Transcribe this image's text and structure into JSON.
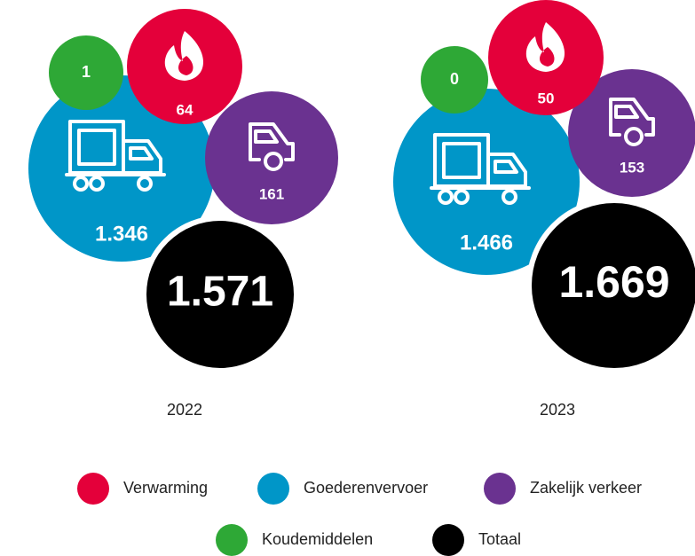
{
  "chart_data": {
    "type": "bubble",
    "categories": [
      "2022",
      "2023"
    ],
    "series": [
      {
        "name": "Verwarming",
        "color": "#e4003a",
        "values": [
          64,
          50
        ]
      },
      {
        "name": "Goederenvervoer",
        "color": "#0096c8",
        "values": [
          1346,
          1466
        ],
        "value_labels": [
          "1.346",
          "1.466"
        ]
      },
      {
        "name": "Zakelijk verkeer",
        "color": "#6a3290",
        "values": [
          161,
          153
        ]
      },
      {
        "name": "Koudemiddelen",
        "color": "#2ea836",
        "values": [
          1,
          0
        ]
      },
      {
        "name": "Totaal",
        "color": "#000000",
        "values": [
          1571,
          1669
        ],
        "value_labels": [
          "1.571",
          "1.669"
        ]
      }
    ]
  }
}
